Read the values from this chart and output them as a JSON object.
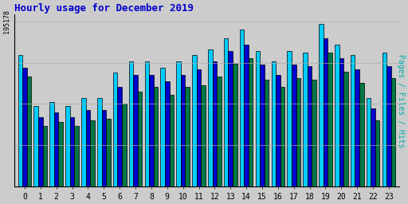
{
  "title": "Hourly usage for December 2019",
  "ylabel": "Pages / Files / Hits",
  "ymax": 195178,
  "ymax_label": "195178",
  "hours": [
    0,
    1,
    2,
    3,
    4,
    5,
    6,
    7,
    8,
    9,
    10,
    11,
    12,
    13,
    14,
    15,
    16,
    17,
    18,
    19,
    20,
    21,
    22,
    23
  ],
  "hits": [
    155000,
    95000,
    100000,
    95000,
    105000,
    105000,
    135000,
    148000,
    148000,
    140000,
    148000,
    155000,
    162000,
    175000,
    185000,
    160000,
    148000,
    160000,
    158000,
    192000,
    168000,
    155000,
    105000,
    158000
  ],
  "files": [
    140000,
    82000,
    88000,
    82000,
    90000,
    90000,
    118000,
    132000,
    132000,
    124000,
    132000,
    138000,
    148000,
    160000,
    168000,
    144000,
    132000,
    144000,
    142000,
    175000,
    152000,
    138000,
    92000,
    142000
  ],
  "pages": [
    130000,
    72000,
    76000,
    72000,
    78000,
    80000,
    98000,
    112000,
    118000,
    108000,
    118000,
    120000,
    130000,
    145000,
    152000,
    126000,
    118000,
    128000,
    126000,
    158000,
    136000,
    122000,
    78000,
    128000
  ],
  "color_hits": "#00ccff",
  "color_files": "#0000cc",
  "color_pages": "#007744",
  "bg_color": "#cccccc",
  "plot_bg": "#cccccc",
  "border_color": "#000000",
  "title_color": "#0000cc",
  "ylabel_color": "#00aaaa",
  "bar_width": 0.28,
  "bar_edge_color": "#000000",
  "bar_edge_width": 0.5
}
